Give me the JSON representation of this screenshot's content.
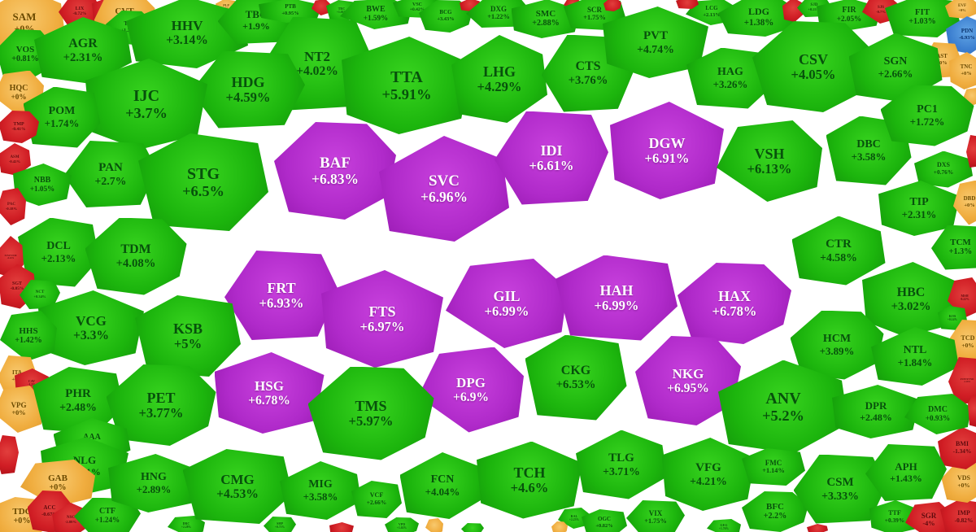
{
  "app": {
    "name": "stock-market-heatmap",
    "exchange_view": "percent-change map"
  },
  "state_colors": {
    "u": "#1cb50d",
    "c": "#b02aca",
    "d": "#d01d24",
    "r": "#f0ad3f",
    "f": "#3c7fd0"
  },
  "state_legend": {
    "u": "up (gain)",
    "c": "ceiling / limit-up",
    "d": "down (loss)",
    "r": "reference / unchanged",
    "f": "floor / limit-down"
  },
  "chart_data": {
    "type": "heatmap",
    "title": "",
    "value_unit": "percent change vs reference",
    "points_columns": [
      "ticker",
      "change",
      "state",
      "cx",
      "cy",
      "w",
      "h",
      "font_px"
    ],
    "points": [
      [
        "SAM",
        "+0%",
        "r",
        30,
        28,
        100,
        85,
        13
      ],
      [
        "LIX",
        "-0.72%",
        "d",
        98,
        14,
        52,
        38,
        6
      ],
      [
        "STK",
        "-0.88%",
        "d",
        135,
        13,
        44,
        34,
        6
      ],
      [
        "CVT",
        "+0%",
        "r",
        153,
        20,
        75,
        62,
        11
      ],
      [
        "PLP",
        "+0%",
        "r",
        278,
        9,
        26,
        20,
        4
      ],
      [
        "TV2",
        "+1.33%",
        "u",
        159,
        34,
        58,
        42,
        7
      ],
      [
        "HHV",
        "+3.14%",
        "u",
        230,
        40,
        150,
        88,
        17
      ],
      [
        "TBC",
        "+1.9%",
        "u",
        315,
        25,
        95,
        58,
        13
      ],
      [
        "PTB",
        "+0.95%",
        "u",
        357,
        13,
        78,
        30,
        7
      ],
      [
        "",
        "",
        "d",
        395,
        9,
        24,
        20,
        0
      ],
      [
        "TRC",
        "+1.01%",
        "u",
        420,
        13,
        38,
        26,
        4
      ],
      [
        "VOS",
        "+0.81%",
        "u",
        31,
        67,
        72,
        62,
        11
      ],
      [
        "AGR",
        "+2.31%",
        "u",
        102,
        62,
        120,
        82,
        16
      ],
      [
        "NT2",
        "+4.02%",
        "u",
        390,
        78,
        135,
        115,
        17
      ],
      [
        "TTA",
        "+5.91%",
        "u",
        500,
        105,
        160,
        120,
        20
      ],
      [
        "BWE",
        "+1.59%",
        "u",
        462,
        17,
        88,
        38,
        10
      ],
      [
        "VSC",
        "+0.42%",
        "u",
        513,
        9,
        60,
        26,
        6
      ],
      [
        "BCG",
        "+3.43%",
        "u",
        548,
        20,
        66,
        40,
        7
      ],
      [
        "",
        "",
        "d",
        578,
        6,
        26,
        16,
        0
      ],
      [
        "DXG",
        "+1.22%",
        "u",
        613,
        16,
        80,
        36,
        9
      ],
      [
        "SMC",
        "+2.88%",
        "u",
        671,
        23,
        85,
        48,
        11
      ],
      [
        "",
        "",
        "d",
        704,
        5,
        22,
        14,
        0
      ],
      [
        "SCR",
        "+1.75%",
        "u",
        731,
        17,
        76,
        40,
        9
      ],
      [
        "",
        "",
        "d",
        753,
        6,
        22,
        16,
        0
      ],
      [
        "LHG",
        "+4.29%",
        "u",
        614,
        97,
        118,
        108,
        18
      ],
      [
        "CTS",
        "+3.76%",
        "u",
        723,
        90,
        115,
        95,
        16
      ],
      [
        "PVT",
        "+4.74%",
        "u",
        806,
        52,
        130,
        88,
        15
      ],
      [
        "LCG",
        "+2.13%",
        "u",
        875,
        15,
        64,
        32,
        7
      ],
      [
        "",
        "",
        "d",
        845,
        4,
        28,
        14,
        0
      ],
      [
        "LDG",
        "+1.38%",
        "u",
        933,
        21,
        100,
        48,
        12
      ],
      [
        "",
        "",
        "d",
        975,
        12,
        26,
        30,
        0
      ],
      [
        "SJD",
        "+0.21%",
        "u",
        1001,
        9,
        42,
        24,
        5
      ],
      [
        "FIR",
        "+2.05%",
        "u",
        1044,
        18,
        80,
        40,
        10
      ],
      [
        "SJS",
        "-0.7%",
        "d",
        1083,
        12,
        46,
        34,
        5
      ],
      [
        "FIT",
        "+1.03%",
        "u",
        1134,
        21,
        92,
        50,
        11
      ],
      [
        "EVF",
        "+0%",
        "r",
        1183,
        10,
        42,
        26,
        5
      ],
      [
        "PDN",
        "-6.93%",
        "f",
        1189,
        43,
        52,
        46,
        7
      ],
      [
        "AST",
        "+0%",
        "r",
        1158,
        74,
        46,
        44,
        7
      ],
      [
        "TNC",
        "+0%",
        "r",
        1188,
        87,
        42,
        46,
        7
      ],
      [
        "",
        "",
        "r",
        1195,
        119,
        22,
        22,
        0
      ],
      [
        "HAG",
        "+3.26%",
        "u",
        898,
        96,
        108,
        75,
        14
      ],
      [
        "CSV",
        "+4.05%",
        "u",
        1000,
        82,
        150,
        112,
        18
      ],
      [
        "SGN",
        "+2.66%",
        "u",
        1101,
        83,
        115,
        85,
        14
      ],
      [
        "HDG",
        "+4.59%",
        "u",
        305,
        110,
        140,
        95,
        18
      ],
      [
        "IJC",
        "+3.7%",
        "u",
        180,
        128,
        150,
        112,
        20
      ],
      [
        "HQC",
        "+0%",
        "r",
        23,
        114,
        62,
        55,
        10
      ],
      [
        "POM",
        "+1.74%",
        "u",
        76,
        144,
        95,
        75,
        14
      ],
      [
        "TMP",
        "-0.41%",
        "d",
        23,
        156,
        50,
        40,
        6
      ],
      [
        "ASM",
        "-0.42%",
        "d",
        18,
        196,
        40,
        40,
        5
      ],
      [
        "PAN",
        "+2.7%",
        "u",
        136,
        214,
        115,
        82,
        15
      ],
      [
        "NBB",
        "+1.05%",
        "u",
        52,
        227,
        72,
        52,
        10
      ],
      [
        "PAC",
        "-0.18%",
        "d",
        14,
        254,
        36,
        46,
        5
      ],
      [
        "STG",
        "+6.5%",
        "u",
        250,
        224,
        160,
        120,
        20
      ],
      [
        "BAF",
        "+6.83%",
        "c",
        412,
        210,
        150,
        120,
        19
      ],
      [
        "SVC",
        "+6.96%",
        "c",
        546,
        232,
        160,
        130,
        19
      ],
      [
        "IDI",
        "+6.61%",
        "c",
        678,
        194,
        140,
        115,
        18
      ],
      [
        "DGW",
        "+6.91%",
        "c",
        820,
        185,
        140,
        120,
        18
      ],
      [
        "VSH",
        "+6.13%",
        "u",
        946,
        198,
        130,
        100,
        18
      ],
      [
        "DBC",
        "+3.58%",
        "u",
        1068,
        185,
        105,
        85,
        14
      ],
      [
        "PC1",
        "+1.72%",
        "u",
        1140,
        142,
        115,
        75,
        14
      ],
      [
        "DXS",
        "+0.76%",
        "u",
        1160,
        208,
        72,
        45,
        8
      ],
      [
        "",
        "",
        "d",
        1197,
        186,
        18,
        40,
        0
      ],
      [
        "TIP",
        "+2.31%",
        "u",
        1130,
        256,
        100,
        68,
        14
      ],
      [
        "DBD",
        "+0%",
        "r",
        1192,
        249,
        40,
        55,
        7
      ],
      [
        "DCL",
        "+2.13%",
        "u",
        72,
        310,
        100,
        85,
        14
      ],
      [
        "TDM",
        "+4.08%",
        "u",
        167,
        315,
        125,
        95,
        16
      ],
      [
        "E1VFVN30",
        "-0.24%",
        "d",
        13,
        316,
        32,
        52,
        3
      ],
      [
        "FRT",
        "+6.93%",
        "c",
        346,
        363,
        140,
        110,
        18
      ],
      [
        "FTS",
        "+6.97%",
        "c",
        470,
        392,
        150,
        120,
        18
      ],
      [
        "GIL",
        "+6.99%",
        "c",
        623,
        373,
        150,
        110,
        18
      ],
      [
        "HAH",
        "+6.99%",
        "c",
        758,
        366,
        150,
        105,
        18
      ],
      [
        "HAX",
        "+6.78%",
        "c",
        903,
        373,
        140,
        100,
        18
      ],
      [
        "CTR",
        "+4.58%",
        "u",
        1031,
        308,
        115,
        85,
        15
      ],
      [
        "TCM",
        "+1.3%",
        "u",
        1181,
        304,
        72,
        55,
        11
      ],
      [
        "HBC",
        "+3.02%",
        "u",
        1120,
        368,
        120,
        92,
        16
      ],
      [
        "MSH",
        "-0.22%",
        "d",
        1186,
        366,
        42,
        50,
        4
      ],
      [
        "KOS",
        "+0.14%",
        "u",
        1171,
        391,
        36,
        30,
        4
      ],
      [
        "TCD",
        "+0%",
        "r",
        1190,
        421,
        44,
        56,
        8
      ],
      [
        "SGT",
        "-0.85%",
        "d",
        21,
        352,
        46,
        55,
        6
      ],
      [
        "NCT",
        "+0.34%",
        "u",
        49,
        362,
        50,
        36,
        5
      ],
      [
        "VCG",
        "+3.3%",
        "u",
        112,
        403,
        130,
        92,
        17
      ],
      [
        "HHS",
        "+1.42%",
        "u",
        35,
        413,
        70,
        62,
        11
      ],
      [
        "KSB",
        "+5%",
        "u",
        231,
        413,
        130,
        100,
        18
      ],
      [
        "HCM",
        "+3.89%",
        "u",
        1029,
        424,
        115,
        85,
        14
      ],
      [
        "NTL",
        "+1.84%",
        "u",
        1125,
        438,
        108,
        72,
        14
      ],
      [
        "FUEVFVND",
        "-2.18%",
        "d",
        1189,
        468,
        46,
        58,
        3
      ],
      [
        "HSG",
        "+6.78%",
        "c",
        331,
        483,
        135,
        100,
        17
      ],
      [
        "DPG",
        "+6.9%",
        "c",
        579,
        479,
        130,
        105,
        17
      ],
      [
        "CKG",
        "+6.53%",
        "u",
        708,
        464,
        125,
        105,
        16
      ],
      [
        "NKG",
        "+6.95%",
        "c",
        846,
        468,
        130,
        110,
        17
      ],
      [
        "ANV",
        "+5.2%",
        "u",
        963,
        500,
        160,
        115,
        20
      ],
      [
        "ITA",
        "+0%",
        "r",
        21,
        463,
        48,
        52,
        7
      ],
      [
        "CAV",
        "-1.2%",
        "d",
        39,
        471,
        42,
        36,
        4
      ],
      [
        "VPG",
        "+0%",
        "r",
        23,
        503,
        62,
        58,
        9
      ],
      [
        "PHR",
        "+2.48%",
        "u",
        96,
        492,
        112,
        82,
        15
      ],
      [
        "PET",
        "+3.77%",
        "u",
        198,
        498,
        135,
        100,
        18
      ],
      [
        "AAA",
        "+0.85%",
        "u",
        113,
        543,
        95,
        58,
        10
      ],
      [
        "",
        "",
        "d",
        9,
        559,
        28,
        48,
        0
      ],
      [
        "NLG",
        "+1.81%",
        "u",
        104,
        573,
        108,
        72,
        13
      ],
      [
        "GAB",
        "+0%",
        "r",
        71,
        594,
        92,
        58,
        11
      ],
      [
        "TDC",
        "+0%",
        "r",
        27,
        635,
        85,
        48,
        11
      ],
      [
        "ACC",
        "-0.67%",
        "d",
        61,
        629,
        55,
        52,
        7
      ],
      [
        "NSC",
        "-2.88%",
        "d",
        87,
        639,
        46,
        42,
        5
      ],
      [
        "CTF",
        "+1.24%",
        "u",
        132,
        634,
        82,
        45,
        10
      ],
      [
        "HNG",
        "+2.89%",
        "u",
        189,
        594,
        112,
        72,
        14
      ],
      [
        "DRC",
        "+2.28%",
        "u",
        229,
        646,
        46,
        24,
        4
      ],
      [
        "CMG",
        "+4.53%",
        "u",
        292,
        598,
        135,
        92,
        17
      ],
      [
        "TMS",
        "+5.97%",
        "u",
        456,
        508,
        155,
        115,
        18
      ],
      [
        "MIG",
        "+3.58%",
        "u",
        394,
        603,
        100,
        72,
        14
      ],
      [
        "SHP",
        "+0.71%",
        "u",
        344,
        646,
        40,
        22,
        4
      ],
      [
        "",
        "",
        "d",
        420,
        650,
        30,
        16,
        0
      ],
      [
        "",
        "",
        "r",
        534,
        647,
        22,
        20,
        0
      ],
      [
        "VCF",
        "+2.66%",
        "u",
        463,
        614,
        62,
        46,
        8
      ],
      [
        "VPD",
        "+1.02%",
        "u",
        494,
        647,
        42,
        22,
        4
      ],
      [
        "FCN",
        "+4.04%",
        "u",
        544,
        597,
        105,
        82,
        14
      ],
      [
        "",
        "",
        "u",
        581,
        650,
        28,
        14,
        0
      ],
      [
        "TCH",
        "+4.6%",
        "u",
        651,
        590,
        130,
        95,
        18
      ],
      [
        "RAL",
        "+2.23%",
        "u",
        706,
        637,
        40,
        26,
        4
      ],
      [
        "OGC",
        "+0.82%",
        "u",
        743,
        643,
        56,
        34,
        7
      ],
      [
        "",
        "",
        "r",
        688,
        649,
        20,
        16,
        0
      ],
      [
        "TLG",
        "+3.71%",
        "u",
        764,
        571,
        112,
        85,
        15
      ],
      [
        "VIX",
        "+1.75%",
        "u",
        806,
        636,
        72,
        42,
        9
      ],
      [
        "VFG",
        "+4.21%",
        "u",
        871,
        583,
        115,
        90,
        15
      ],
      [
        "GEG",
        "+1.76%",
        "u",
        890,
        648,
        42,
        20,
        4
      ],
      [
        "FMC",
        "+1.14%",
        "u",
        951,
        574,
        78,
        46,
        9
      ],
      [
        "BFC",
        "+2.2%",
        "u",
        953,
        629,
        82,
        50,
        11
      ],
      [
        "",
        "",
        "d",
        1005,
        650,
        26,
        12,
        0
      ],
      [
        "CSM",
        "+3.33%",
        "u",
        1033,
        601,
        115,
        85,
        15
      ],
      [
        "TTF",
        "+0.39%",
        "u",
        1100,
        636,
        62,
        42,
        8
      ],
      [
        "SGR",
        "-4%",
        "d",
        1142,
        639,
        58,
        44,
        9
      ],
      [
        "IMP",
        "-0.82%",
        "d",
        1185,
        636,
        58,
        44,
        8
      ],
      [
        "VDS",
        "+0%",
        "r",
        1185,
        593,
        55,
        50,
        8
      ],
      [
        "BMI",
        "-1.34%",
        "d",
        1183,
        551,
        60,
        52,
        8
      ],
      [
        "APH",
        "+1.43%",
        "u",
        1114,
        581,
        100,
        70,
        13
      ],
      [
        "DPR",
        "+2.48%",
        "u",
        1077,
        506,
        108,
        66,
        13
      ],
      [
        "DMC",
        "+0.93%",
        "u",
        1153,
        509,
        82,
        50,
        10
      ],
      [
        "",
        "",
        "d",
        1198,
        505,
        16,
        40,
        0
      ]
    ]
  }
}
